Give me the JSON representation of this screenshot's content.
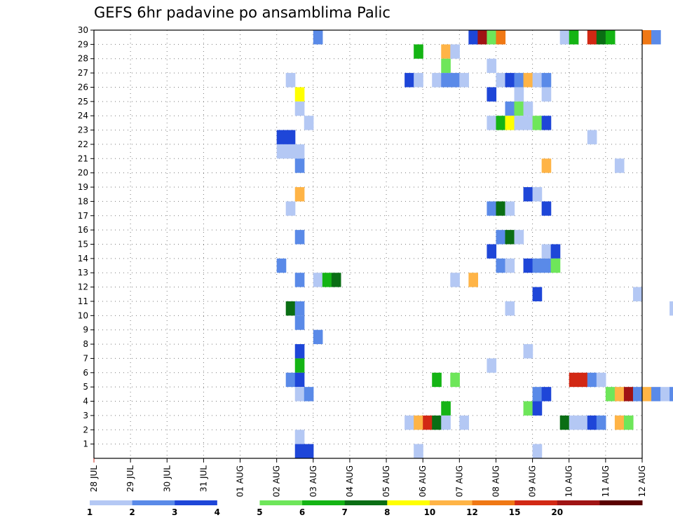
{
  "title": "GEFS 6hr padavine po ansamblima Palic",
  "chart_data": {
    "type": "heatmap",
    "title": "GEFS 6hr padavine po ansamblima Palic",
    "xlabel": "",
    "ylabel": "",
    "x_tick_labels": [
      "28 JUL",
      "29 JUL",
      "30 JUL",
      "31 JUL",
      "01 AUG",
      "02 AUG",
      "03 AUG",
      "04 AUG",
      "05 AUG",
      "06 AUG",
      "07 AUG",
      "08 AUG",
      "09 AUG",
      "10 AUG",
      "11 AUG",
      "12 AUG"
    ],
    "y_tick_labels": [
      "1",
      "2",
      "3",
      "4",
      "5",
      "6",
      "7",
      "8",
      "9",
      "10",
      "11",
      "12",
      "13",
      "14",
      "15",
      "16",
      "17",
      "18",
      "19",
      "20",
      "21",
      "22",
      "23",
      "24",
      "25",
      "26",
      "27",
      "28",
      "29",
      "30"
    ],
    "y_range": [
      0,
      30
    ],
    "x_range_days": [
      0,
      15
    ],
    "grid": true,
    "colorbar": {
      "labels": [
        "1",
        "2",
        "3",
        "4",
        "5",
        "6",
        "7",
        "8",
        "10",
        "12",
        "15",
        "20"
      ],
      "colors": [
        "#b4c8f4",
        "#5a8ae8",
        "#1e46d8",
        "#ffffff",
        "#6ee65a",
        "#14b414",
        "#0a6e14",
        "#ffff00",
        "#ffb446",
        "#f07814",
        "#d22814",
        "#a01414",
        "#5a0000"
      ]
    },
    "cells": [
      {
        "m": 30,
        "t": 24,
        "c": 1
      },
      {
        "m": 30,
        "t": 41,
        "c": 2
      },
      {
        "m": 30,
        "t": 42,
        "c": 11
      },
      {
        "m": 30,
        "t": 43,
        "c": 4
      },
      {
        "m": 30,
        "t": 44,
        "c": 9
      },
      {
        "m": 30,
        "t": 51,
        "c": 0
      },
      {
        "m": 30,
        "t": 52,
        "c": 5
      },
      {
        "m": 30,
        "t": 54,
        "c": 10
      },
      {
        "m": 30,
        "t": 55,
        "c": 6
      },
      {
        "m": 30,
        "t": 56,
        "c": 5
      },
      {
        "m": 30,
        "t": 60,
        "c": 9
      },
      {
        "m": 30,
        "t": 61,
        "c": 1
      },
      {
        "m": 30,
        "t": 73,
        "c": 1
      },
      {
        "m": 29,
        "t": 35,
        "c": 5
      },
      {
        "m": 29,
        "t": 38,
        "c": 8
      },
      {
        "m": 29,
        "t": 39,
        "c": 0
      },
      {
        "m": 28,
        "t": 38,
        "c": 4
      },
      {
        "m": 28,
        "t": 43,
        "c": 0
      },
      {
        "m": 27,
        "t": 21,
        "c": 0
      },
      {
        "m": 27,
        "t": 34,
        "c": 2
      },
      {
        "m": 27,
        "t": 35,
        "c": 0
      },
      {
        "m": 27,
        "t": 37,
        "c": 0
      },
      {
        "m": 27,
        "t": 38,
        "c": 1
      },
      {
        "m": 27,
        "t": 39,
        "c": 1
      },
      {
        "m": 27,
        "t": 40,
        "c": 0
      },
      {
        "m": 27,
        "t": 44,
        "c": 0
      },
      {
        "m": 27,
        "t": 45,
        "c": 2
      },
      {
        "m": 27,
        "t": 46,
        "c": 1
      },
      {
        "m": 27,
        "t": 47,
        "c": 8
      },
      {
        "m": 27,
        "t": 48,
        "c": 0
      },
      {
        "m": 27,
        "t": 49,
        "c": 1
      },
      {
        "m": 27,
        "t": 71,
        "c": 0
      },
      {
        "m": 27,
        "t": 72,
        "c": 5
      },
      {
        "m": 27,
        "t": 73,
        "c": 0
      },
      {
        "m": 26,
        "t": 22,
        "c": 7
      },
      {
        "m": 26,
        "t": 43,
        "c": 2
      },
      {
        "m": 26,
        "t": 46,
        "c": 0
      },
      {
        "m": 26,
        "t": 49,
        "c": 0
      },
      {
        "m": 25,
        "t": 22,
        "c": 0
      },
      {
        "m": 25,
        "t": 45,
        "c": 1
      },
      {
        "m": 25,
        "t": 46,
        "c": 4
      },
      {
        "m": 25,
        "t": 47,
        "c": 0
      },
      {
        "m": 25,
        "t": 64,
        "c": 0
      },
      {
        "m": 24,
        "t": 23,
        "c": 0
      },
      {
        "m": 24,
        "t": 43,
        "c": 0
      },
      {
        "m": 24,
        "t": 44,
        "c": 5
      },
      {
        "m": 24,
        "t": 45,
        "c": 7
      },
      {
        "m": 24,
        "t": 46,
        "c": 0
      },
      {
        "m": 24,
        "t": 47,
        "c": 0
      },
      {
        "m": 24,
        "t": 48,
        "c": 4
      },
      {
        "m": 24,
        "t": 49,
        "c": 2
      },
      {
        "m": 24,
        "t": 79,
        "c": 0
      },
      {
        "m": 24,
        "t": 80,
        "c": 0
      },
      {
        "m": 23,
        "t": 20,
        "c": 2
      },
      {
        "m": 23,
        "t": 21,
        "c": 2
      },
      {
        "m": 23,
        "t": 54,
        "c": 0
      },
      {
        "m": 23,
        "t": 71,
        "c": 4
      },
      {
        "m": 22,
        "t": 20,
        "c": 0
      },
      {
        "m": 22,
        "t": 21,
        "c": 0
      },
      {
        "m": 22,
        "t": 22,
        "c": 0
      },
      {
        "m": 22,
        "t": 72,
        "c": 4
      },
      {
        "m": 21,
        "t": 22,
        "c": 1
      },
      {
        "m": 21,
        "t": 49,
        "c": 8
      },
      {
        "m": 21,
        "t": 57,
        "c": 0
      },
      {
        "m": 21,
        "t": 71,
        "c": 0
      },
      {
        "m": 21,
        "t": 72,
        "c": 5
      },
      {
        "m": 19,
        "t": 22,
        "c": 8
      },
      {
        "m": 19,
        "t": 47,
        "c": 2
      },
      {
        "m": 19,
        "t": 48,
        "c": 0
      },
      {
        "m": 19,
        "t": 72,
        "c": 0
      },
      {
        "m": 19,
        "t": 75,
        "c": 5
      },
      {
        "m": 18,
        "t": 21,
        "c": 0
      },
      {
        "m": 18,
        "t": 43,
        "c": 1
      },
      {
        "m": 18,
        "t": 44,
        "c": 6
      },
      {
        "m": 18,
        "t": 45,
        "c": 0
      },
      {
        "m": 18,
        "t": 49,
        "c": 2
      },
      {
        "m": 16,
        "t": 22,
        "c": 1
      },
      {
        "m": 16,
        "t": 44,
        "c": 1
      },
      {
        "m": 16,
        "t": 45,
        "c": 6
      },
      {
        "m": 16,
        "t": 46,
        "c": 0
      },
      {
        "m": 15,
        "t": 43,
        "c": 2
      },
      {
        "m": 15,
        "t": 49,
        "c": 0
      },
      {
        "m": 15,
        "t": 50,
        "c": 2
      },
      {
        "m": 14,
        "t": 20,
        "c": 1
      },
      {
        "m": 14,
        "t": 44,
        "c": 1
      },
      {
        "m": 14,
        "t": 45,
        "c": 0
      },
      {
        "m": 14,
        "t": 47,
        "c": 2
      },
      {
        "m": 14,
        "t": 48,
        "c": 1
      },
      {
        "m": 14,
        "t": 49,
        "c": 1
      },
      {
        "m": 14,
        "t": 50,
        "c": 4
      },
      {
        "m": 13,
        "t": 22,
        "c": 1
      },
      {
        "m": 13,
        "t": 24,
        "c": 0
      },
      {
        "m": 13,
        "t": 25,
        "c": 5
      },
      {
        "m": 13,
        "t": 26,
        "c": 6
      },
      {
        "m": 13,
        "t": 39,
        "c": 0
      },
      {
        "m": 13,
        "t": 41,
        "c": 8
      },
      {
        "m": 12,
        "t": 48,
        "c": 2
      },
      {
        "m": 12,
        "t": 59,
        "c": 0
      },
      {
        "m": 12,
        "t": 80,
        "c": 0
      },
      {
        "m": 12,
        "t": 81,
        "c": 1
      },
      {
        "m": 11,
        "t": 21,
        "c": 6
      },
      {
        "m": 11,
        "t": 22,
        "c": 1
      },
      {
        "m": 11,
        "t": 45,
        "c": 0
      },
      {
        "m": 11,
        "t": 63,
        "c": 0
      },
      {
        "m": 10,
        "t": 22,
        "c": 1
      },
      {
        "m": 10,
        "t": 71,
        "c": 0
      },
      {
        "m": 10,
        "t": 72,
        "c": 8
      },
      {
        "m": 10,
        "t": 73,
        "c": 8
      },
      {
        "m": 10,
        "t": 74,
        "c": 0
      },
      {
        "m": 9,
        "t": 24,
        "c": 1
      },
      {
        "m": 8,
        "t": 22,
        "c": 2
      },
      {
        "m": 8,
        "t": 47,
        "c": 0
      },
      {
        "m": 8,
        "t": 64,
        "c": 1
      },
      {
        "m": 8,
        "t": 83,
        "c": 0
      },
      {
        "m": 7,
        "t": 22,
        "c": 5
      },
      {
        "m": 7,
        "t": 43,
        "c": 0
      },
      {
        "m": 7,
        "t": 77,
        "c": 0
      },
      {
        "m": 6,
        "t": 21,
        "c": 1
      },
      {
        "m": 6,
        "t": 22,
        "c": 2
      },
      {
        "m": 6,
        "t": 37,
        "c": 5
      },
      {
        "m": 6,
        "t": 39,
        "c": 4
      },
      {
        "m": 6,
        "t": 52,
        "c": 10
      },
      {
        "m": 6,
        "t": 53,
        "c": 10
      },
      {
        "m": 6,
        "t": 54,
        "c": 1
      },
      {
        "m": 6,
        "t": 55,
        "c": 0
      },
      {
        "m": 5,
        "t": 22,
        "c": 0
      },
      {
        "m": 5,
        "t": 23,
        "c": 1
      },
      {
        "m": 5,
        "t": 48,
        "c": 1
      },
      {
        "m": 5,
        "t": 49,
        "c": 2
      },
      {
        "m": 5,
        "t": 56,
        "c": 4
      },
      {
        "m": 5,
        "t": 57,
        "c": 8
      },
      {
        "m": 5,
        "t": 58,
        "c": 11
      },
      {
        "m": 5,
        "t": 59,
        "c": 1
      },
      {
        "m": 5,
        "t": 60,
        "c": 8
      },
      {
        "m": 5,
        "t": 61,
        "c": 1
      },
      {
        "m": 5,
        "t": 62,
        "c": 0
      },
      {
        "m": 5,
        "t": 63,
        "c": 1
      },
      {
        "m": 5,
        "t": 65,
        "c": 2
      },
      {
        "m": 4,
        "t": 38,
        "c": 5
      },
      {
        "m": 4,
        "t": 47,
        "c": 4
      },
      {
        "m": 4,
        "t": 48,
        "c": 2
      },
      {
        "m": 4,
        "t": 80,
        "c": 6
      },
      {
        "m": 4,
        "t": 83,
        "c": 2
      },
      {
        "m": 3,
        "t": 34,
        "c": 0
      },
      {
        "m": 3,
        "t": 35,
        "c": 8
      },
      {
        "m": 3,
        "t": 36,
        "c": 10
      },
      {
        "m": 3,
        "t": 37,
        "c": 6
      },
      {
        "m": 3,
        "t": 38,
        "c": 0
      },
      {
        "m": 3,
        "t": 40,
        "c": 0
      },
      {
        "m": 3,
        "t": 51,
        "c": 6
      },
      {
        "m": 3,
        "t": 52,
        "c": 0
      },
      {
        "m": 3,
        "t": 53,
        "c": 0
      },
      {
        "m": 3,
        "t": 54,
        "c": 2
      },
      {
        "m": 3,
        "t": 55,
        "c": 1
      },
      {
        "m": 3,
        "t": 57,
        "c": 8
      },
      {
        "m": 3,
        "t": 58,
        "c": 4
      },
      {
        "m": 3,
        "t": 68,
        "c": 9
      },
      {
        "m": 3,
        "t": 69,
        "c": 0
      },
      {
        "m": 2,
        "t": 22,
        "c": 0
      },
      {
        "m": 1,
        "t": 22,
        "c": 2
      },
      {
        "m": 1,
        "t": 23,
        "c": 2
      },
      {
        "m": 1,
        "t": 35,
        "c": 0
      },
      {
        "m": 1,
        "t": 48,
        "c": 0
      }
    ]
  }
}
